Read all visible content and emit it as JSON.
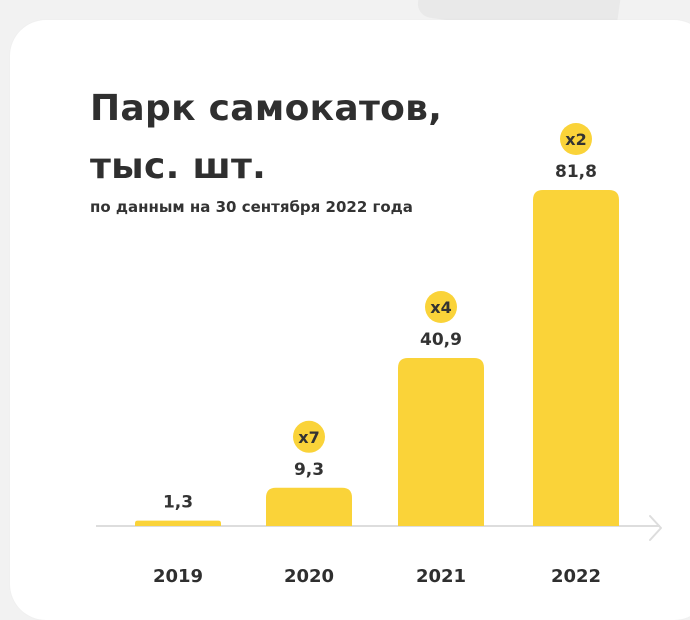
{
  "title_line1": "Парк самокатов,",
  "title_line2": "тыс. шт.",
  "subtitle": "по данным на 30 сентября 2022 года",
  "colors": {
    "bar": "#fad339",
    "badge": "#fad339",
    "axis": "#dddddd",
    "text": "#333333"
  },
  "chart_data": {
    "type": "bar",
    "title": "Парк самокатов, тыс. шт.",
    "subtitle": "по данным на 30 сентября 2022 года",
    "categories": [
      "2019",
      "2020",
      "2021",
      "2022"
    ],
    "values": [
      1.3,
      9.3,
      40.9,
      81.8
    ],
    "value_labels": [
      "1,3",
      "9,3",
      "40,9",
      "81,8"
    ],
    "growth_badges": [
      "",
      "x7",
      "x4",
      "x2"
    ],
    "xlabel": "",
    "ylabel": "",
    "ylim": [
      0,
      100
    ],
    "grid": false
  }
}
